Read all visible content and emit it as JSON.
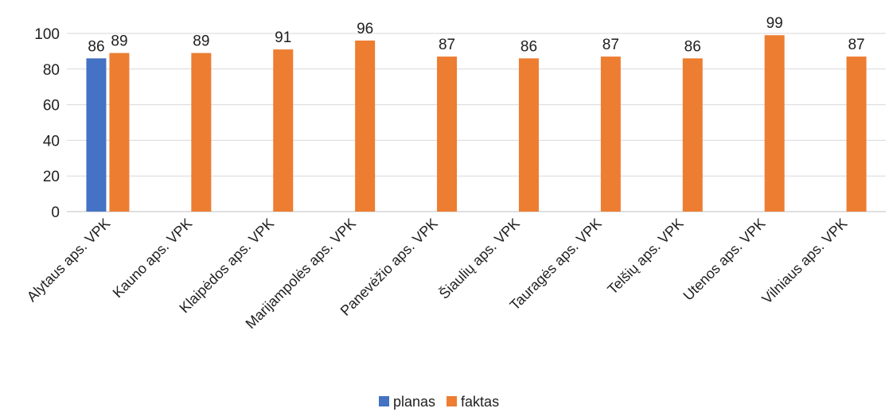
{
  "chart_data": {
    "type": "bar",
    "categories": [
      "Alytaus aps. VPK",
      "Kauno aps. VPK",
      "Klaipėdos aps. VPK",
      "Marijampolės aps. VPK",
      "Panevėžio aps. VPK",
      "Šiaulių aps. VPK",
      "Tauragės aps. VPK",
      "Telšių aps. VPK",
      "Utenos aps. VPK",
      "Vilniaus aps. VPK"
    ],
    "series": [
      {
        "name": "planas",
        "color": "#4472C4",
        "values": [
          86,
          null,
          null,
          null,
          null,
          null,
          null,
          null,
          null,
          null
        ]
      },
      {
        "name": "faktas",
        "color": "#ED7D31",
        "values": [
          89,
          89,
          91,
          96,
          87,
          86,
          87,
          86,
          99,
          87
        ]
      }
    ],
    "ylim": [
      0,
      100
    ],
    "yticks": [
      0,
      20,
      40,
      60,
      80,
      100
    ],
    "grid": true,
    "legend_position": "bottom",
    "data_labels": true
  }
}
